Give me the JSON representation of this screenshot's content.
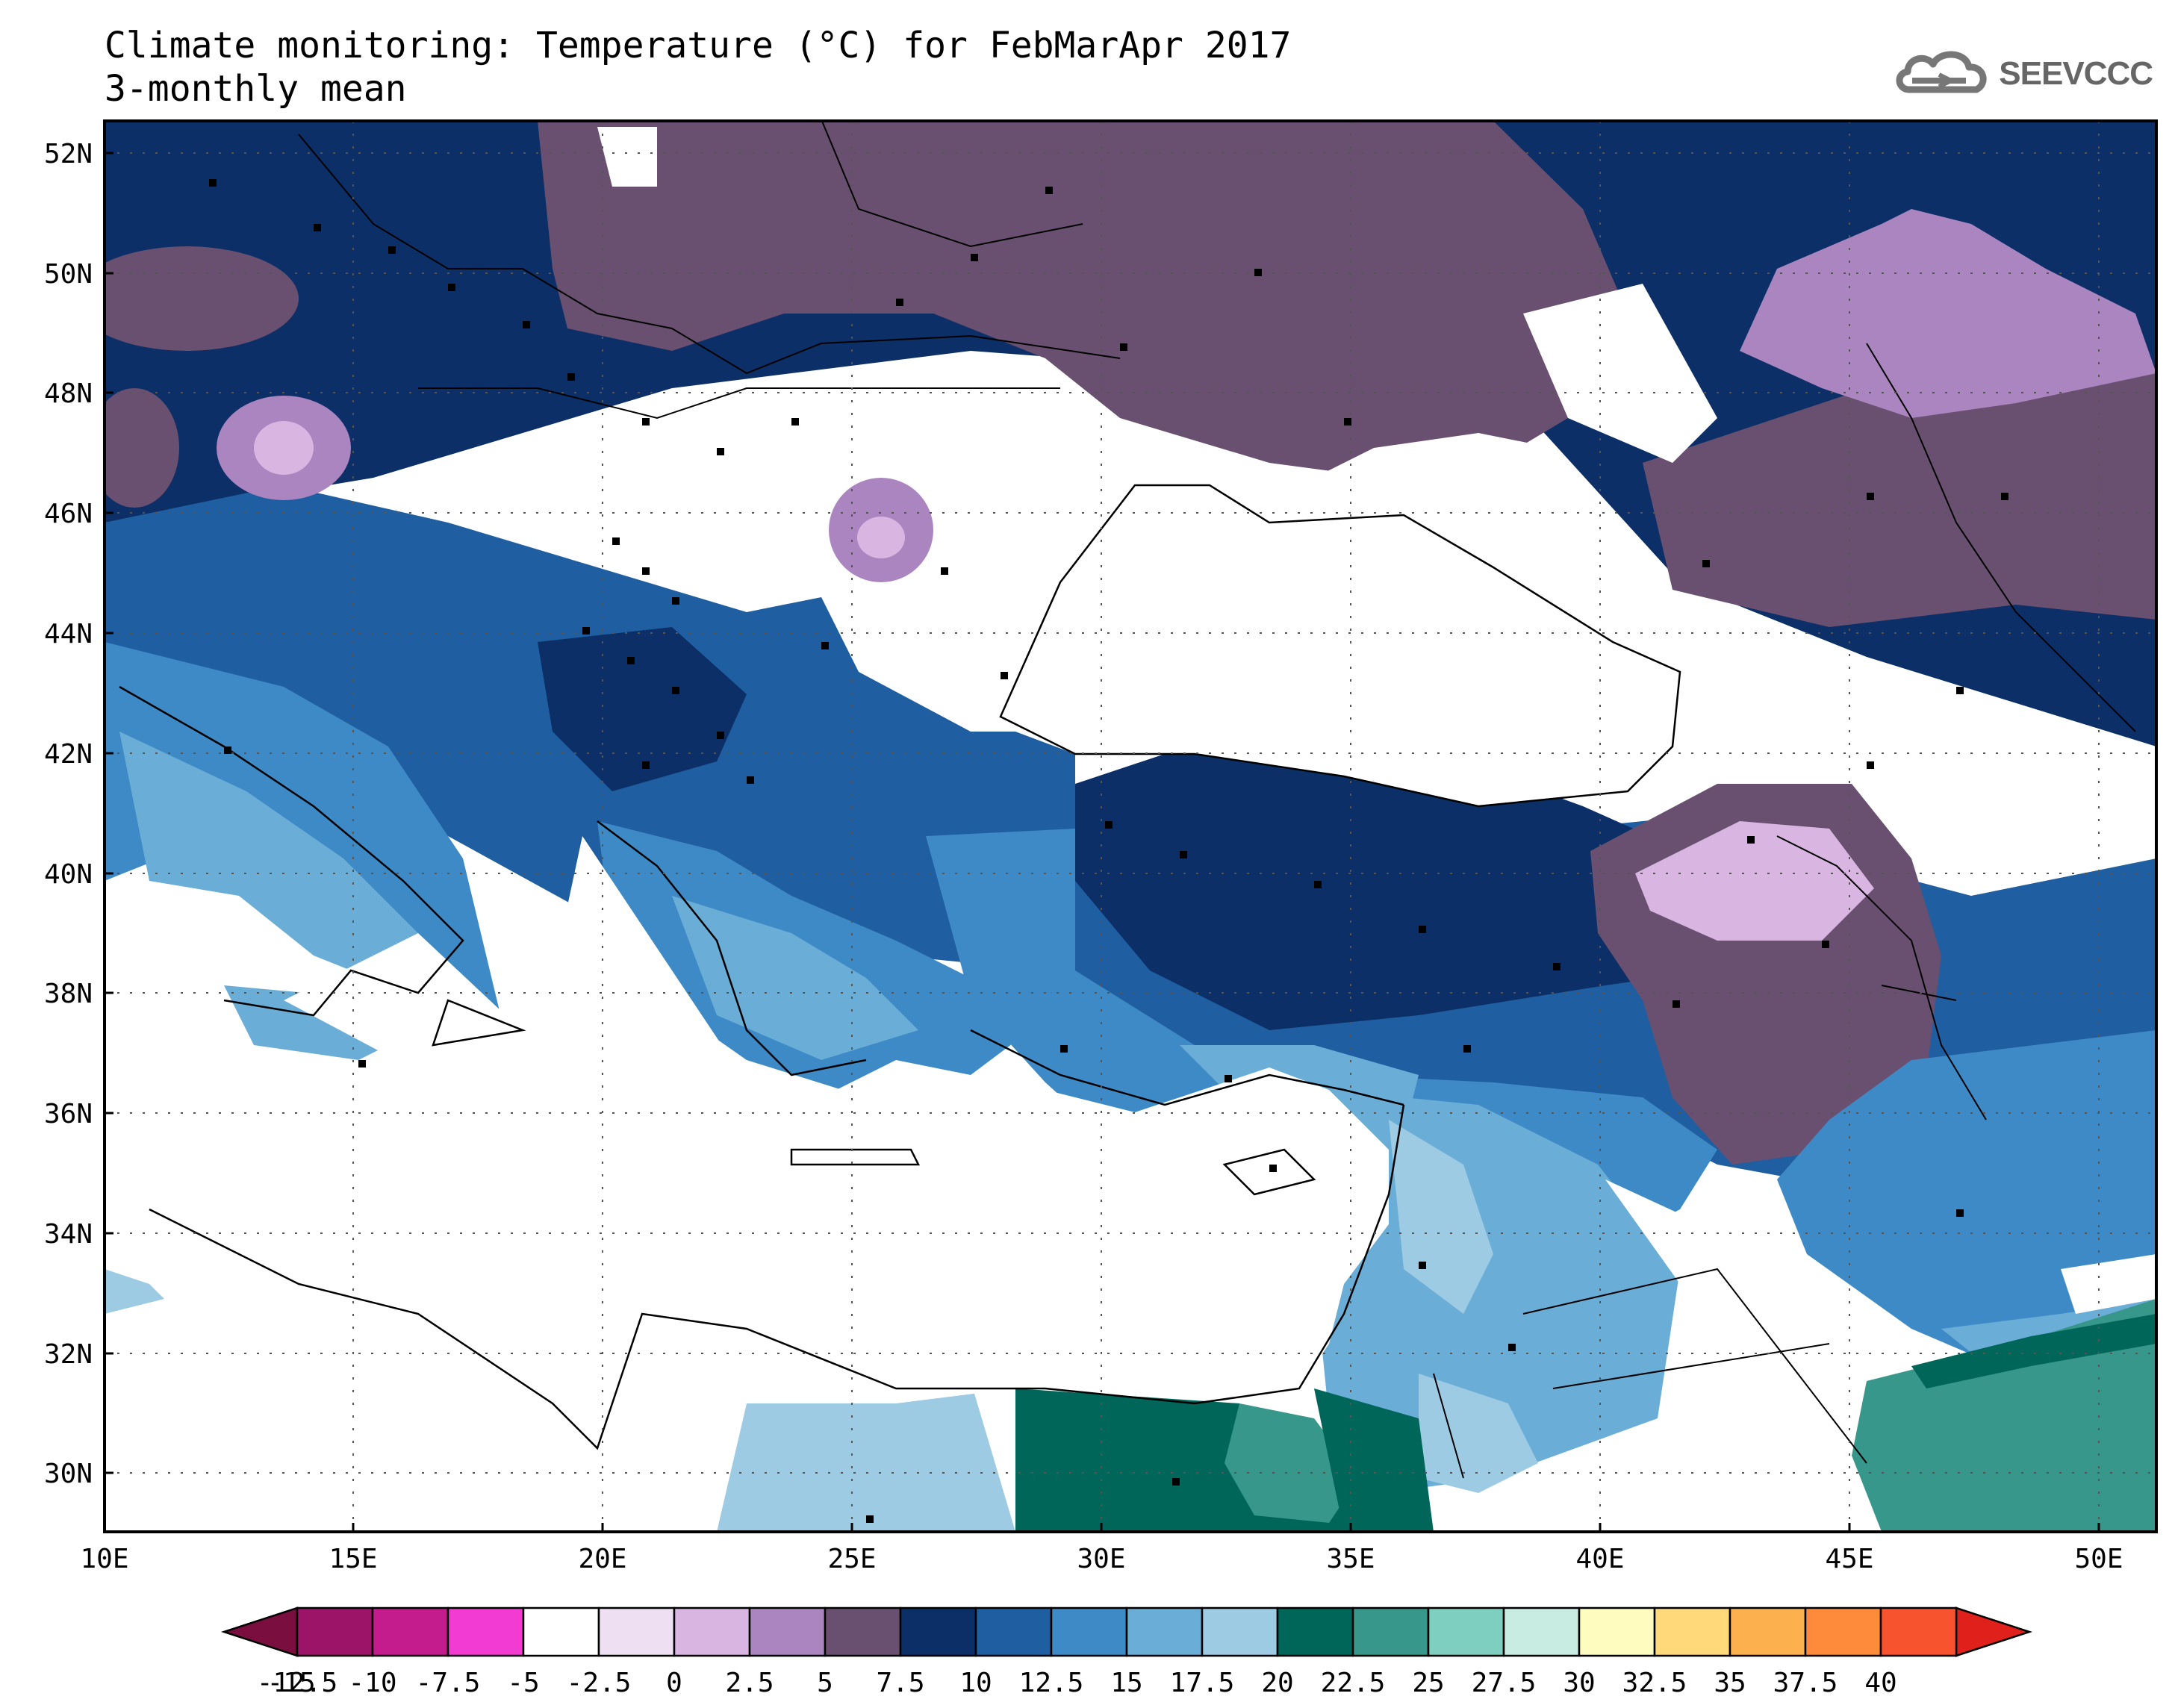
{
  "header": {
    "title": "Climate monitoring: Temperature (°C) for FebMarApr 2017",
    "subtitle": "3-monthly mean",
    "logo_text": "SEEVCCC",
    "logo_icon": "cloud-icon"
  },
  "map": {
    "lat_ticks": [
      "52N",
      "50N",
      "48N",
      "46N",
      "44N",
      "42N",
      "40N",
      "38N",
      "36N",
      "34N",
      "32N",
      "30N"
    ],
    "lon_ticks": [
      "10E",
      "15E",
      "20E",
      "25E",
      "30E",
      "35E",
      "40E",
      "45E",
      "50E"
    ],
    "extent": {
      "lon_min": 10,
      "lon_max": 51,
      "lat_min": 29,
      "lat_max": 52.5
    }
  },
  "colorbar": {
    "labels": [
      "-15",
      "-12.5",
      "-10",
      "-7.5",
      "-5",
      "-2.5",
      "0",
      "2.5",
      "5",
      "7.5",
      "10",
      "12.5",
      "15",
      "17.5",
      "20",
      "22.5",
      "25",
      "27.5",
      "30",
      "32.5",
      "35",
      "37.5",
      "40"
    ],
    "low_extend_color": "#7a0f3f",
    "high_extend_color": "#e0201a",
    "colors": [
      "#9c1468",
      "#c41c8c",
      "#f23bd2",
      "#ffffff",
      "#eee0f2",
      "#d9b6e2",
      "#ab85bf",
      "#6a5070",
      "#0b2f66",
      "#1f5ea0",
      "#3d8ac6",
      "#6aadd6",
      "#9ccbe3",
      "#00665a",
      "#36978a",
      "#7fcfc0",
      "#c8ece2",
      "#fffcc0",
      "#ffd97a",
      "#fdb14e",
      "#fd8b3b",
      "#f6532e"
    ]
  }
}
